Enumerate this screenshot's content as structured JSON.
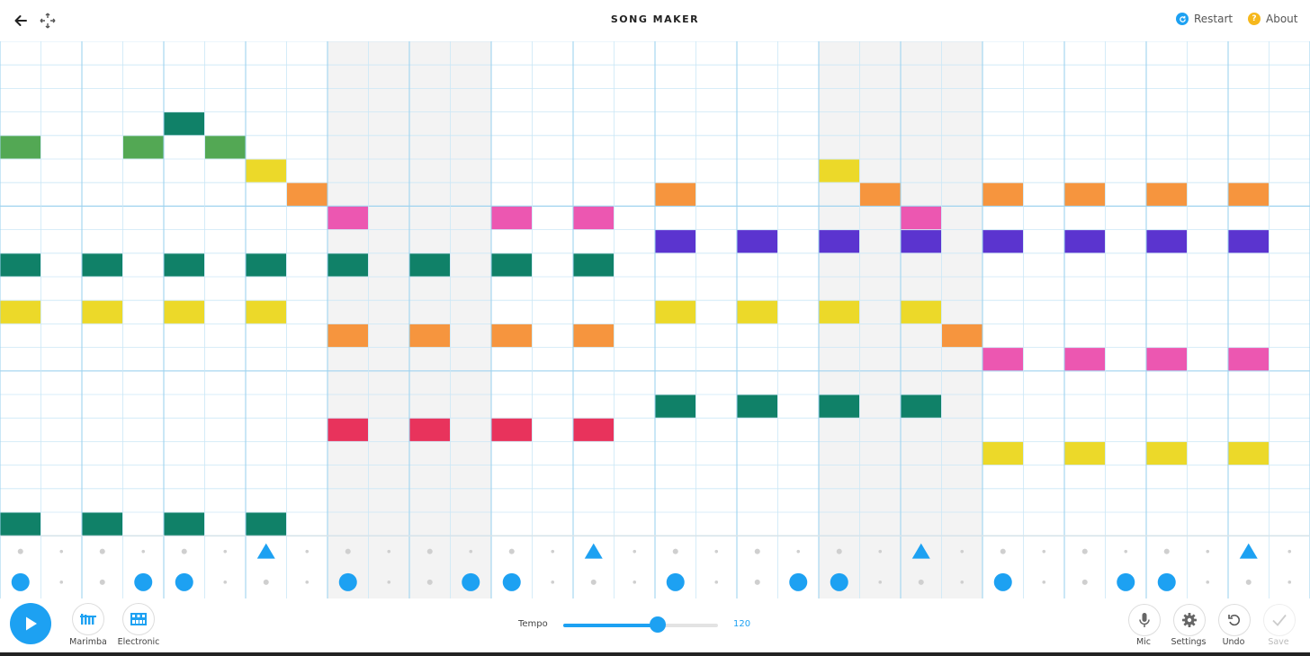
{
  "header": {
    "title": "SONG MAKER",
    "restart_label": "Restart",
    "about_label": "About"
  },
  "icons": {
    "back": "back-arrow-icon",
    "move": "move-icon",
    "restart": "restart-icon",
    "about": "question-icon",
    "play": "play-icon",
    "marimba": "marimba-icon",
    "electronic": "electronic-icon",
    "mic": "mic-icon",
    "settings": "gear-icon",
    "undo": "undo-icon",
    "save": "check-icon"
  },
  "colors": {
    "accent": "#1da1f2",
    "restart": "#1da1f2",
    "about": "#f6b81c",
    "grid_line": "#cbe7f6",
    "beat_line": "#9fd3ef",
    "shade": "#f3f3f3"
  },
  "grid": {
    "columns": 32,
    "rows": 21,
    "measures_shaded": [
      2,
      5
    ],
    "note_colors": {
      "0": "#e8335c",
      "1": "#ec57b1",
      "2": "#5b34cf",
      "3": "#108168",
      "4": "#53a854",
      "5": "#ecd929",
      "6": "#f6953e",
      "7": "#ec57b1",
      "8": "#5b34cf",
      "9": "#108168",
      "10": "#53a854",
      "11": "#ecd929",
      "12": "#f6953e",
      "13": "#ec57b1",
      "14": "#5b34cf",
      "15": "#108168",
      "16": "#e8335c",
      "17": "#ecd929",
      "18": "#f6953e",
      "19": "#e8335c",
      "20": "#108168"
    },
    "notes": [
      {
        "row": 3,
        "cols": [
          4
        ]
      },
      {
        "row": 4,
        "cols": [
          0,
          3,
          5
        ]
      },
      {
        "row": 5,
        "cols": [
          6,
          20
        ]
      },
      {
        "row": 6,
        "cols": [
          7,
          16,
          21,
          24,
          26,
          28,
          30
        ]
      },
      {
        "row": 7,
        "cols": [
          8,
          12,
          14,
          22
        ]
      },
      {
        "row": 8,
        "cols": [
          16,
          18,
          20,
          22,
          24,
          26,
          28,
          30
        ]
      },
      {
        "row": 9,
        "cols": [
          0,
          2,
          4,
          6,
          8,
          10,
          12,
          14
        ]
      },
      {
        "row": 11,
        "cols": [
          0,
          2,
          4,
          6,
          16,
          18,
          20,
          22
        ]
      },
      {
        "row": 12,
        "cols": [
          8,
          10,
          12,
          14,
          23
        ]
      },
      {
        "row": 13,
        "cols": [
          24,
          26,
          28,
          30
        ]
      },
      {
        "row": 15,
        "cols": [
          16,
          18,
          20,
          22
        ]
      },
      {
        "row": 16,
        "cols": [
          8,
          10,
          12,
          14
        ]
      },
      {
        "row": 17,
        "cols": [
          24,
          26,
          28,
          30
        ]
      },
      {
        "row": 20,
        "cols": [
          0,
          2,
          4,
          6
        ]
      }
    ],
    "percussion_triangle_cols": [
      6,
      14,
      22,
      30
    ],
    "percussion_circle_cols": [
      0,
      3,
      4,
      8,
      11,
      12,
      16,
      19,
      20,
      24,
      27,
      28
    ]
  },
  "bottom": {
    "marimba_label": "Marimba",
    "electronic_label": "Electronic",
    "tempo_label": "Tempo",
    "tempo_value": "120",
    "tempo_fraction": 0.61,
    "mic_label": "Mic",
    "settings_label": "Settings",
    "undo_label": "Undo",
    "save_label": "Save"
  }
}
